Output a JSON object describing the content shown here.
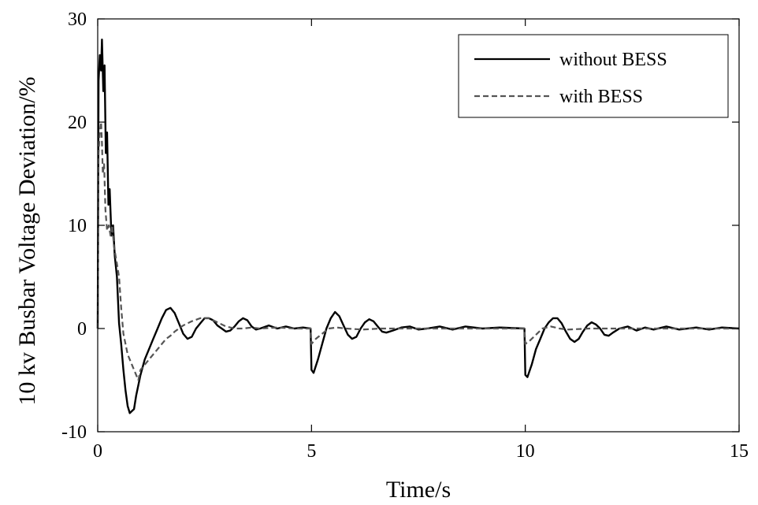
{
  "chart_data": {
    "type": "line",
    "xlabel": "Time/s",
    "ylabel": "10 kv Busbar Voltage Deviation/%",
    "xlim": [
      0,
      15
    ],
    "ylim": [
      -10,
      30
    ],
    "xticks": [
      0,
      5,
      10,
      15
    ],
    "yticks": [
      -10,
      0,
      10,
      20,
      30
    ],
    "grid": false,
    "legend_position": "top-right",
    "series": [
      {
        "name": "without BESS",
        "color": "#000000",
        "style": "solid",
        "points": [
          [
            0.0,
            0.0
          ],
          [
            0.02,
            24.0
          ],
          [
            0.05,
            26.5
          ],
          [
            0.08,
            25.0
          ],
          [
            0.1,
            28.0
          ],
          [
            0.13,
            23.0
          ],
          [
            0.16,
            25.5
          ],
          [
            0.19,
            17.0
          ],
          [
            0.22,
            19.0
          ],
          [
            0.25,
            12.0
          ],
          [
            0.28,
            13.5
          ],
          [
            0.32,
            9.0
          ],
          [
            0.36,
            10.0
          ],
          [
            0.4,
            7.0
          ],
          [
            0.45,
            5.0
          ],
          [
            0.5,
            0.5
          ],
          [
            0.55,
            -1.5
          ],
          [
            0.6,
            -4.0
          ],
          [
            0.65,
            -6.0
          ],
          [
            0.7,
            -7.5
          ],
          [
            0.75,
            -8.2
          ],
          [
            0.8,
            -8.0
          ],
          [
            0.85,
            -7.8
          ],
          [
            0.9,
            -6.5
          ],
          [
            1.0,
            -4.5
          ],
          [
            1.1,
            -3.0
          ],
          [
            1.2,
            -2.0
          ],
          [
            1.3,
            -1.0
          ],
          [
            1.4,
            0.0
          ],
          [
            1.5,
            1.0
          ],
          [
            1.6,
            1.8
          ],
          [
            1.7,
            2.0
          ],
          [
            1.8,
            1.5
          ],
          [
            1.9,
            0.5
          ],
          [
            2.0,
            -0.5
          ],
          [
            2.1,
            -1.0
          ],
          [
            2.2,
            -0.8
          ],
          [
            2.3,
            0.0
          ],
          [
            2.4,
            0.5
          ],
          [
            2.5,
            1.0
          ],
          [
            2.6,
            1.0
          ],
          [
            2.7,
            0.8
          ],
          [
            2.8,
            0.3
          ],
          [
            2.9,
            0.0
          ],
          [
            3.0,
            -0.3
          ],
          [
            3.1,
            -0.2
          ],
          [
            3.2,
            0.2
          ],
          [
            3.3,
            0.7
          ],
          [
            3.4,
            1.0
          ],
          [
            3.5,
            0.8
          ],
          [
            3.6,
            0.2
          ],
          [
            3.7,
            -0.1
          ],
          [
            3.8,
            0.0
          ],
          [
            4.0,
            0.3
          ],
          [
            4.2,
            0.0
          ],
          [
            4.4,
            0.2
          ],
          [
            4.6,
            0.0
          ],
          [
            4.8,
            0.1
          ],
          [
            4.98,
            0.0
          ],
          [
            5.0,
            -4.0
          ],
          [
            5.05,
            -4.3
          ],
          [
            5.15,
            -3.0
          ],
          [
            5.25,
            -1.5
          ],
          [
            5.35,
            0.0
          ],
          [
            5.45,
            1.0
          ],
          [
            5.55,
            1.6
          ],
          [
            5.65,
            1.2
          ],
          [
            5.75,
            0.3
          ],
          [
            5.85,
            -0.6
          ],
          [
            5.95,
            -1.0
          ],
          [
            6.05,
            -0.8
          ],
          [
            6.15,
            0.0
          ],
          [
            6.25,
            0.6
          ],
          [
            6.35,
            0.9
          ],
          [
            6.45,
            0.7
          ],
          [
            6.55,
            0.2
          ],
          [
            6.65,
            -0.3
          ],
          [
            6.75,
            -0.4
          ],
          [
            6.9,
            -0.2
          ],
          [
            7.1,
            0.1
          ],
          [
            7.3,
            0.2
          ],
          [
            7.5,
            -0.1
          ],
          [
            7.7,
            0.0
          ],
          [
            8.0,
            0.2
          ],
          [
            8.3,
            -0.1
          ],
          [
            8.6,
            0.2
          ],
          [
            9.0,
            0.0
          ],
          [
            9.4,
            0.1
          ],
          [
            9.98,
            0.0
          ],
          [
            10.0,
            -4.5
          ],
          [
            10.05,
            -4.7
          ],
          [
            10.15,
            -3.5
          ],
          [
            10.25,
            -2.0
          ],
          [
            10.35,
            -1.0
          ],
          [
            10.45,
            0.0
          ],
          [
            10.55,
            0.6
          ],
          [
            10.65,
            1.0
          ],
          [
            10.75,
            1.0
          ],
          [
            10.85,
            0.5
          ],
          [
            10.95,
            -0.3
          ],
          [
            11.05,
            -1.0
          ],
          [
            11.15,
            -1.3
          ],
          [
            11.25,
            -1.0
          ],
          [
            11.35,
            -0.3
          ],
          [
            11.45,
            0.3
          ],
          [
            11.55,
            0.6
          ],
          [
            11.65,
            0.4
          ],
          [
            11.75,
            0.0
          ],
          [
            11.85,
            -0.6
          ],
          [
            11.95,
            -0.7
          ],
          [
            12.05,
            -0.4
          ],
          [
            12.2,
            0.0
          ],
          [
            12.4,
            0.2
          ],
          [
            12.6,
            -0.2
          ],
          [
            12.8,
            0.1
          ],
          [
            13.0,
            -0.1
          ],
          [
            13.3,
            0.2
          ],
          [
            13.6,
            -0.1
          ],
          [
            14.0,
            0.1
          ],
          [
            14.3,
            -0.1
          ],
          [
            14.6,
            0.1
          ],
          [
            15.0,
            0.0
          ]
        ]
      },
      {
        "name": "with BESS",
        "color": "#555555",
        "style": "dashed",
        "points": [
          [
            0.0,
            0.0
          ],
          [
            0.02,
            17.0
          ],
          [
            0.05,
            19.0
          ],
          [
            0.08,
            20.0
          ],
          [
            0.1,
            18.0
          ],
          [
            0.12,
            15.0
          ],
          [
            0.15,
            16.0
          ],
          [
            0.18,
            11.5
          ],
          [
            0.22,
            9.5
          ],
          [
            0.26,
            10.0
          ],
          [
            0.3,
            9.0
          ],
          [
            0.34,
            10.0
          ],
          [
            0.38,
            8.0
          ],
          [
            0.42,
            7.0
          ],
          [
            0.46,
            6.0
          ],
          [
            0.5,
            5.0
          ],
          [
            0.55,
            2.0
          ],
          [
            0.6,
            -0.5
          ],
          [
            0.65,
            -1.5
          ],
          [
            0.7,
            -2.5
          ],
          [
            0.75,
            -3.0
          ],
          [
            0.8,
            -3.5
          ],
          [
            0.85,
            -4.0
          ],
          [
            0.9,
            -4.5
          ],
          [
            0.95,
            -5.0
          ],
          [
            1.0,
            -4.0
          ],
          [
            1.1,
            -3.5
          ],
          [
            1.2,
            -3.0
          ],
          [
            1.3,
            -2.5
          ],
          [
            1.4,
            -2.0
          ],
          [
            1.5,
            -1.5
          ],
          [
            1.6,
            -1.0
          ],
          [
            1.7,
            -0.7
          ],
          [
            1.8,
            -0.3
          ],
          [
            1.9,
            0.0
          ],
          [
            2.0,
            0.3
          ],
          [
            2.2,
            0.7
          ],
          [
            2.4,
            1.0
          ],
          [
            2.6,
            1.0
          ],
          [
            2.8,
            0.6
          ],
          [
            3.0,
            0.2
          ],
          [
            3.2,
            0.0
          ],
          [
            3.4,
            0.0
          ],
          [
            3.6,
            0.1
          ],
          [
            3.8,
            0.0
          ],
          [
            4.2,
            0.1
          ],
          [
            4.6,
            0.0
          ],
          [
            4.98,
            0.0
          ],
          [
            5.0,
            -1.5
          ],
          [
            5.1,
            -1.0
          ],
          [
            5.25,
            -0.5
          ],
          [
            5.4,
            0.0
          ],
          [
            5.6,
            0.1
          ],
          [
            5.8,
            0.0
          ],
          [
            6.2,
            -0.1
          ],
          [
            6.6,
            0.0
          ],
          [
            7.0,
            0.0
          ],
          [
            7.5,
            0.0
          ],
          [
            8.0,
            0.0
          ],
          [
            8.5,
            0.0
          ],
          [
            9.0,
            0.0
          ],
          [
            9.5,
            0.0
          ],
          [
            9.98,
            0.0
          ],
          [
            10.0,
            -1.5
          ],
          [
            10.1,
            -1.2
          ],
          [
            10.25,
            -0.6
          ],
          [
            10.4,
            0.0
          ],
          [
            10.6,
            0.2
          ],
          [
            10.8,
            0.0
          ],
          [
            11.0,
            -0.1
          ],
          [
            11.5,
            0.0
          ],
          [
            12.0,
            0.0
          ],
          [
            13.0,
            0.0
          ],
          [
            14.0,
            0.0
          ],
          [
            15.0,
            0.0
          ]
        ]
      }
    ]
  }
}
